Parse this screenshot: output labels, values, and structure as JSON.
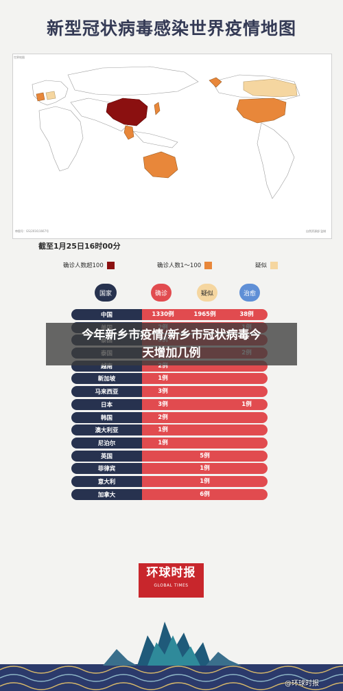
{
  "title": "新型冠状病毒感染世界疫情地图",
  "map": {
    "caption_top_left": "世界地图",
    "caption_bottom_left": "审图号：GS(2016)1667号",
    "caption_bottom_right": "自然资源部 监制"
  },
  "date_text": "截至1月25日16时00分",
  "legend": [
    {
      "label": "确诊人数超100",
      "color": "#8b1010"
    },
    {
      "label": "确诊人数1～100",
      "color": "#e8873a"
    },
    {
      "label": "疑似",
      "color": "#f5d6a0"
    }
  ],
  "columns": {
    "country": "国家",
    "confirmed": "确诊",
    "suspected": "疑似",
    "cured": "治愈"
  },
  "rows": [
    {
      "country": "中国",
      "confirmed": "1330例",
      "suspected": "1965例",
      "cured": "38例"
    },
    {
      "country": "美国",
      "confirmed": "2例",
      "suspected": "",
      "cured": "1例"
    },
    {
      "country": "泰国",
      "confirmed": "5例",
      "suspected": "",
      "cured": ""
    },
    {
      "country": "泰国",
      "confirmed": "",
      "suspected": "",
      "cured": "2例"
    },
    {
      "country": "越南",
      "confirmed": "2例",
      "suspected": "",
      "cured": ""
    },
    {
      "country": "新加坡",
      "confirmed": "1例",
      "suspected": "",
      "cured": ""
    },
    {
      "country": "马来西亚",
      "confirmed": "3例",
      "suspected": "",
      "cured": ""
    },
    {
      "country": "日本",
      "confirmed": "3例",
      "suspected": "",
      "cured": "1例"
    },
    {
      "country": "韩国",
      "confirmed": "2例",
      "suspected": "",
      "cured": ""
    },
    {
      "country": "澳大利亚",
      "confirmed": "1例",
      "suspected": "",
      "cured": ""
    },
    {
      "country": "尼泊尔",
      "confirmed": "1例",
      "suspected": "",
      "cured": ""
    },
    {
      "country": "英国",
      "confirmed": "5例",
      "suspected": "",
      "cured": ""
    },
    {
      "country": "菲律宾",
      "confirmed": "1例",
      "suspected": "",
      "cured": ""
    },
    {
      "country": "意大利",
      "confirmed": "1例",
      "suspected": "",
      "cured": ""
    },
    {
      "country": "加拿大",
      "confirmed": "6例",
      "suspected": "",
      "cured": ""
    }
  ],
  "banner": {
    "line1": "今年新乡市疫情/新乡市冠状病毒今",
    "line2": "天增加几例"
  },
  "logo": {
    "main": "环球时报",
    "sub": "GLOBAL TIMES"
  },
  "watermark": "@环球时报"
}
